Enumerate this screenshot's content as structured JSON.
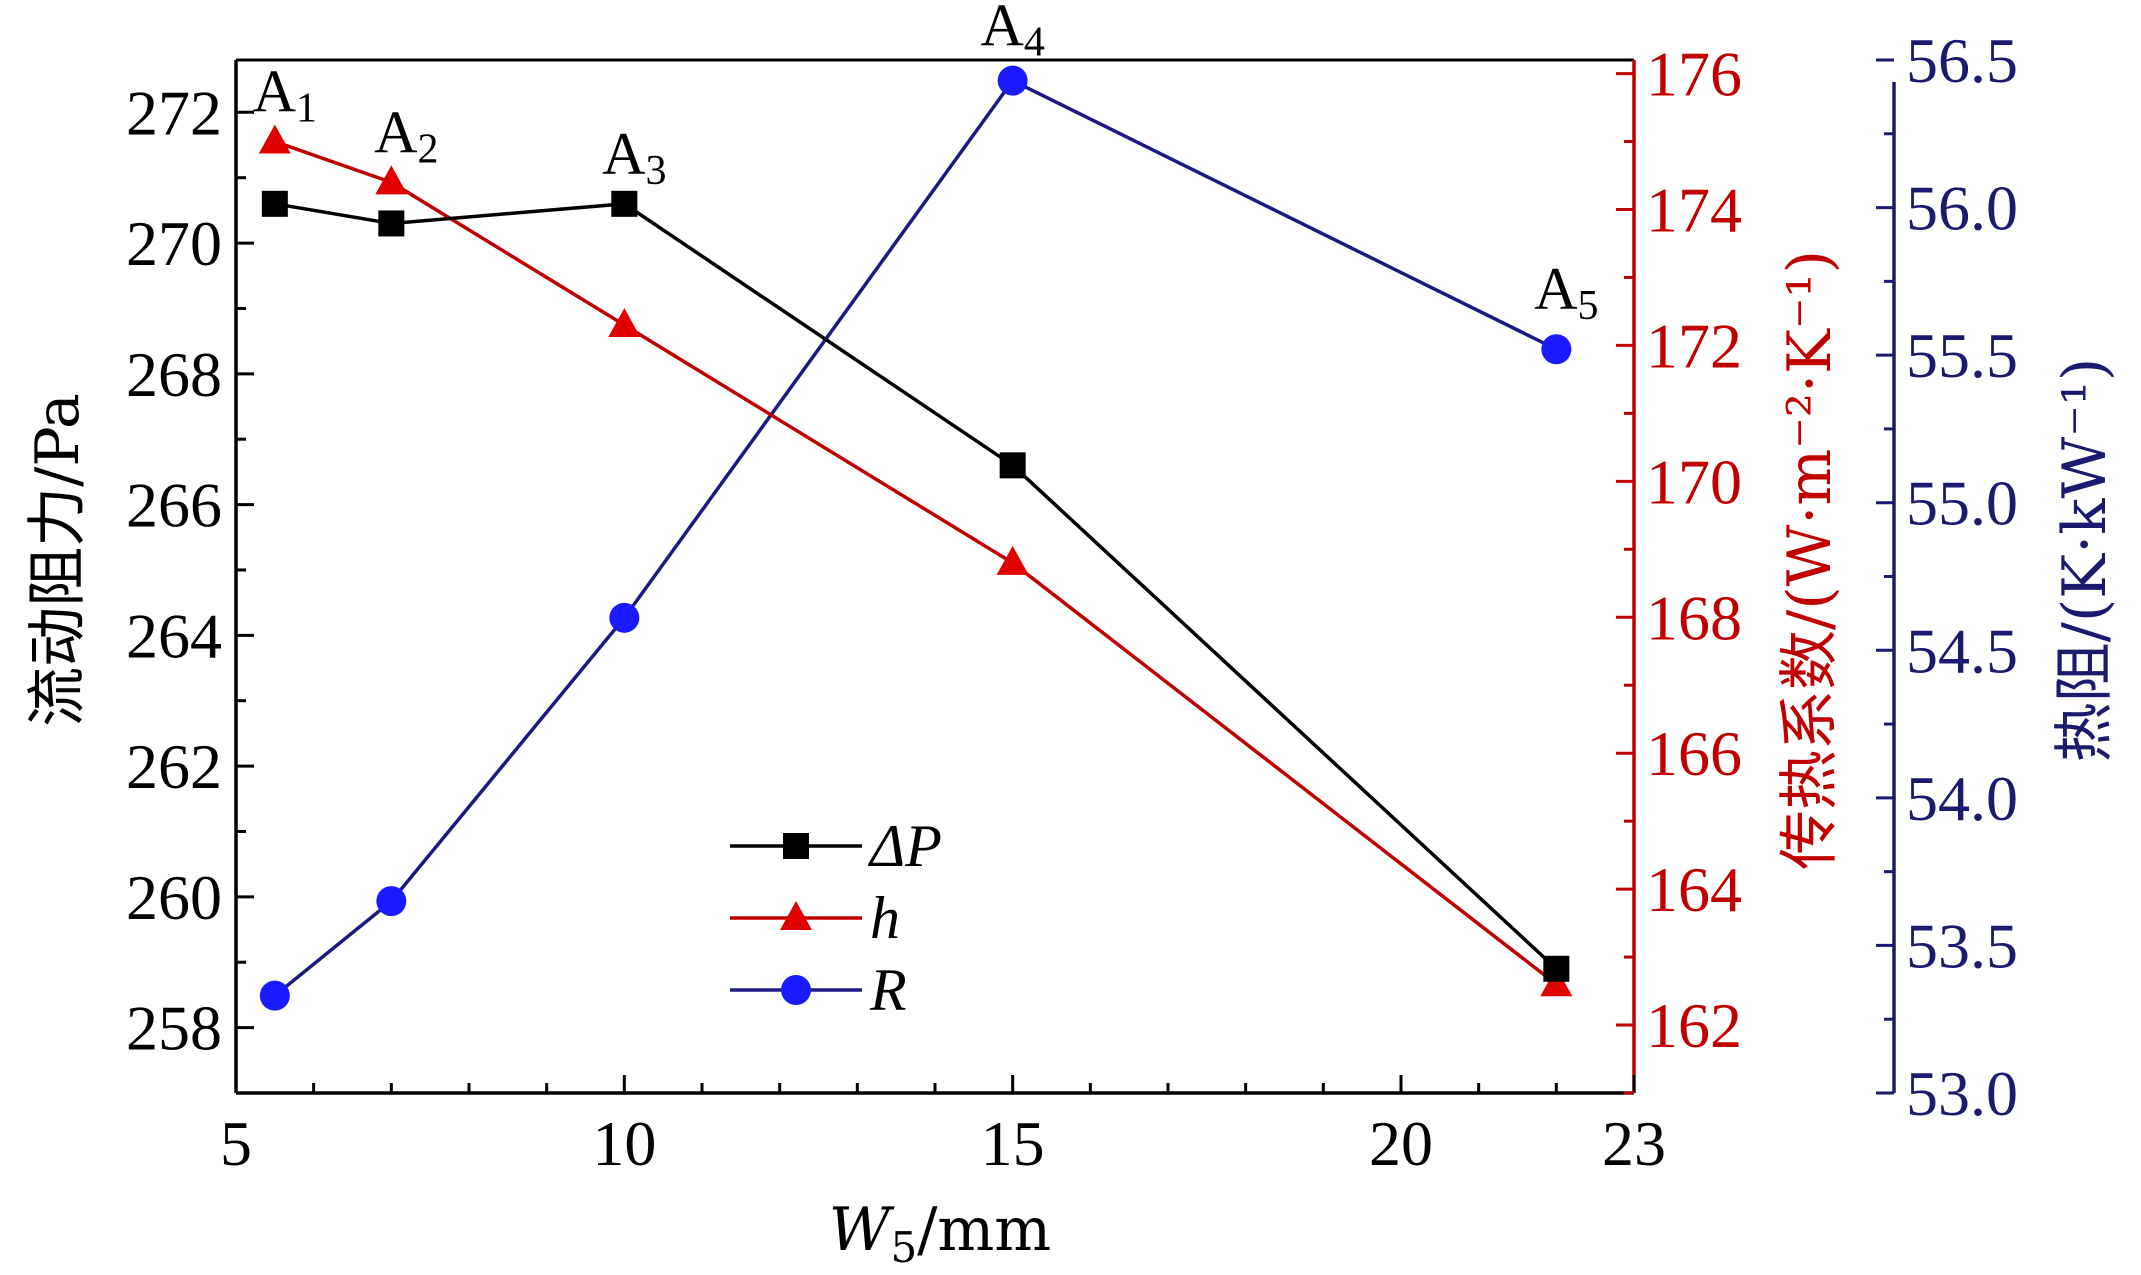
{
  "chart_data": {
    "type": "line",
    "xlabel": {
      "main": "W",
      "sub": "5",
      "unit": "/mm"
    },
    "xlim": [
      5,
      23
    ],
    "xticks": [
      5,
      10,
      15,
      20,
      23
    ],
    "x": [
      5.5,
      7,
      10,
      15,
      22
    ],
    "axes": {
      "left": {
        "label": "流动阻力/Pa",
        "ylim": [
          257,
          272.8
        ],
        "ticks": [
          258,
          260,
          262,
          264,
          266,
          268,
          270,
          272
        ],
        "color": "#000000"
      },
      "right1": {
        "label": "传热系数/(W·m⁻²·K⁻¹)",
        "ylim": [
          161,
          176.2
        ],
        "ticks": [
          162,
          164,
          166,
          168,
          170,
          172,
          174,
          176
        ],
        "color": "#c00000"
      },
      "right2": {
        "label": "热阻/(K·kW⁻¹)",
        "ylim": [
          53.0,
          56.5
        ],
        "ticks": [
          "53.0",
          "53.5",
          "54.0",
          "54.5",
          "55.0",
          "55.5",
          "56.0",
          "56.5"
        ],
        "color": "#1a1a6e"
      }
    },
    "series": [
      {
        "name": "ΔP",
        "axis": "left",
        "marker": "square",
        "color": "#000000",
        "values": [
          270.6,
          270.3,
          270.6,
          266.6,
          258.9
        ]
      },
      {
        "name": "h",
        "axis": "right1",
        "marker": "triangle",
        "color": "#e00000",
        "values": [
          175.0,
          174.4,
          172.3,
          168.8,
          162.6
        ]
      },
      {
        "name": "R",
        "axis": "right2",
        "marker": "circle",
        "color": "#1a1aff",
        "values": [
          53.33,
          53.65,
          54.61,
          56.43,
          55.52
        ]
      }
    ],
    "annotations": [
      {
        "text": "A",
        "sub": "1"
      },
      {
        "text": "A",
        "sub": "2"
      },
      {
        "text": "A",
        "sub": "3"
      },
      {
        "text": "A",
        "sub": "4"
      },
      {
        "text": "A",
        "sub": "5"
      }
    ],
    "legend": {
      "position": "lower-center",
      "entries": [
        "ΔP",
        "h",
        "R"
      ]
    }
  }
}
